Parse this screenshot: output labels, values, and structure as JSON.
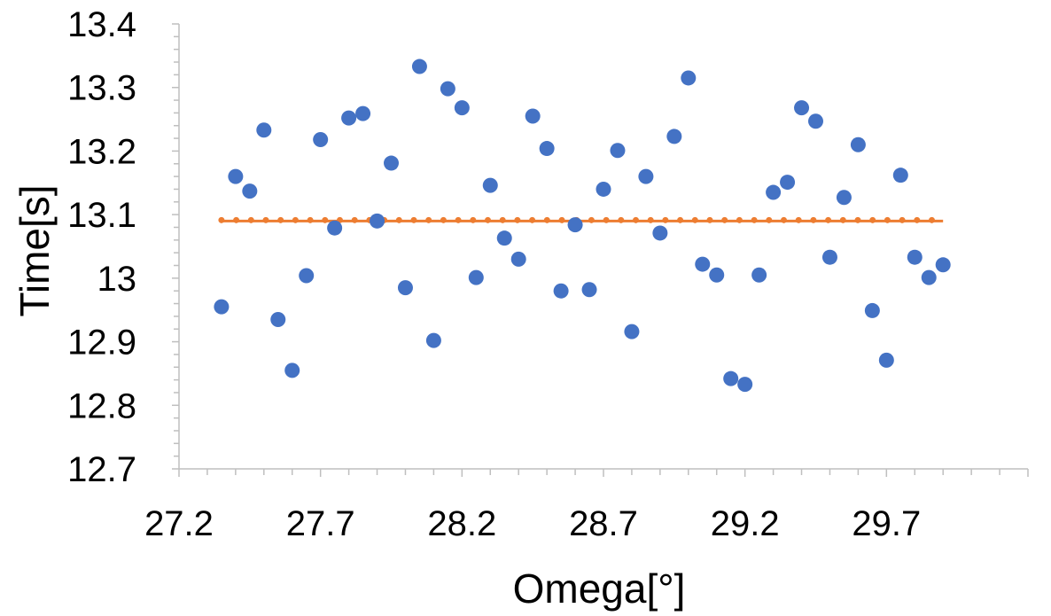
{
  "chart_data": {
    "type": "scatter",
    "title": "",
    "xlabel": "Omega[°]",
    "ylabel": "Time[s]",
    "xlim": [
      27.2,
      30.2
    ],
    "ylim": [
      12.7,
      13.4
    ],
    "x_ticks": [
      "27.2",
      "27.7",
      "28.2",
      "28.7",
      "29.2",
      "29.7"
    ],
    "x_tick_values": [
      27.2,
      27.7,
      28.2,
      28.7,
      29.2,
      29.7
    ],
    "y_ticks": [
      "12.7",
      "12.8",
      "12.9",
      "13",
      "13.1",
      "13.2",
      "13.3",
      "13.4"
    ],
    "y_tick_values": [
      12.7,
      12.8,
      12.9,
      13.0,
      13.1,
      13.2,
      13.3,
      13.4
    ],
    "grid": false,
    "legend": "none",
    "series": [
      {
        "style": "markers",
        "color": "#4472C4",
        "x": [
          27.35,
          27.4,
          27.45,
          27.5,
          27.55,
          27.6,
          27.65,
          27.7,
          27.75,
          27.8,
          27.85,
          27.9,
          27.95,
          28.0,
          28.05,
          28.1,
          28.15,
          28.2,
          28.25,
          28.3,
          28.35,
          28.4,
          28.45,
          28.5,
          28.55,
          28.6,
          28.65,
          28.7,
          28.75,
          28.8,
          28.85,
          28.9,
          28.95,
          29.0,
          29.05,
          29.1,
          29.15,
          29.2,
          29.25,
          29.3,
          29.35,
          29.4,
          29.45,
          29.5,
          29.55,
          29.6,
          29.65,
          29.7,
          29.75,
          29.8,
          29.85,
          29.9
        ],
        "y": [
          12.955,
          13.16,
          13.137,
          13.233,
          12.935,
          12.855,
          13.004,
          13.218,
          13.079,
          13.252,
          13.259,
          13.09,
          13.181,
          12.985,
          13.333,
          12.902,
          13.298,
          13.268,
          13.001,
          13.146,
          13.063,
          13.03,
          13.255,
          13.204,
          12.98,
          13.084,
          12.982,
          13.14,
          13.201,
          12.916,
          13.16,
          13.071,
          13.223,
          13.315,
          13.022,
          13.005,
          12.842,
          12.833,
          13.005,
          13.135,
          13.151,
          13.268,
          13.247,
          13.033,
          13.127,
          13.21,
          12.949,
          12.871,
          13.162,
          13.033,
          13.001,
          13.021
        ]
      },
      {
        "style": "dotted-line",
        "color": "#ED7D31",
        "x": [
          27.35,
          29.9
        ],
        "y": [
          13.09,
          13.09
        ]
      }
    ]
  }
}
